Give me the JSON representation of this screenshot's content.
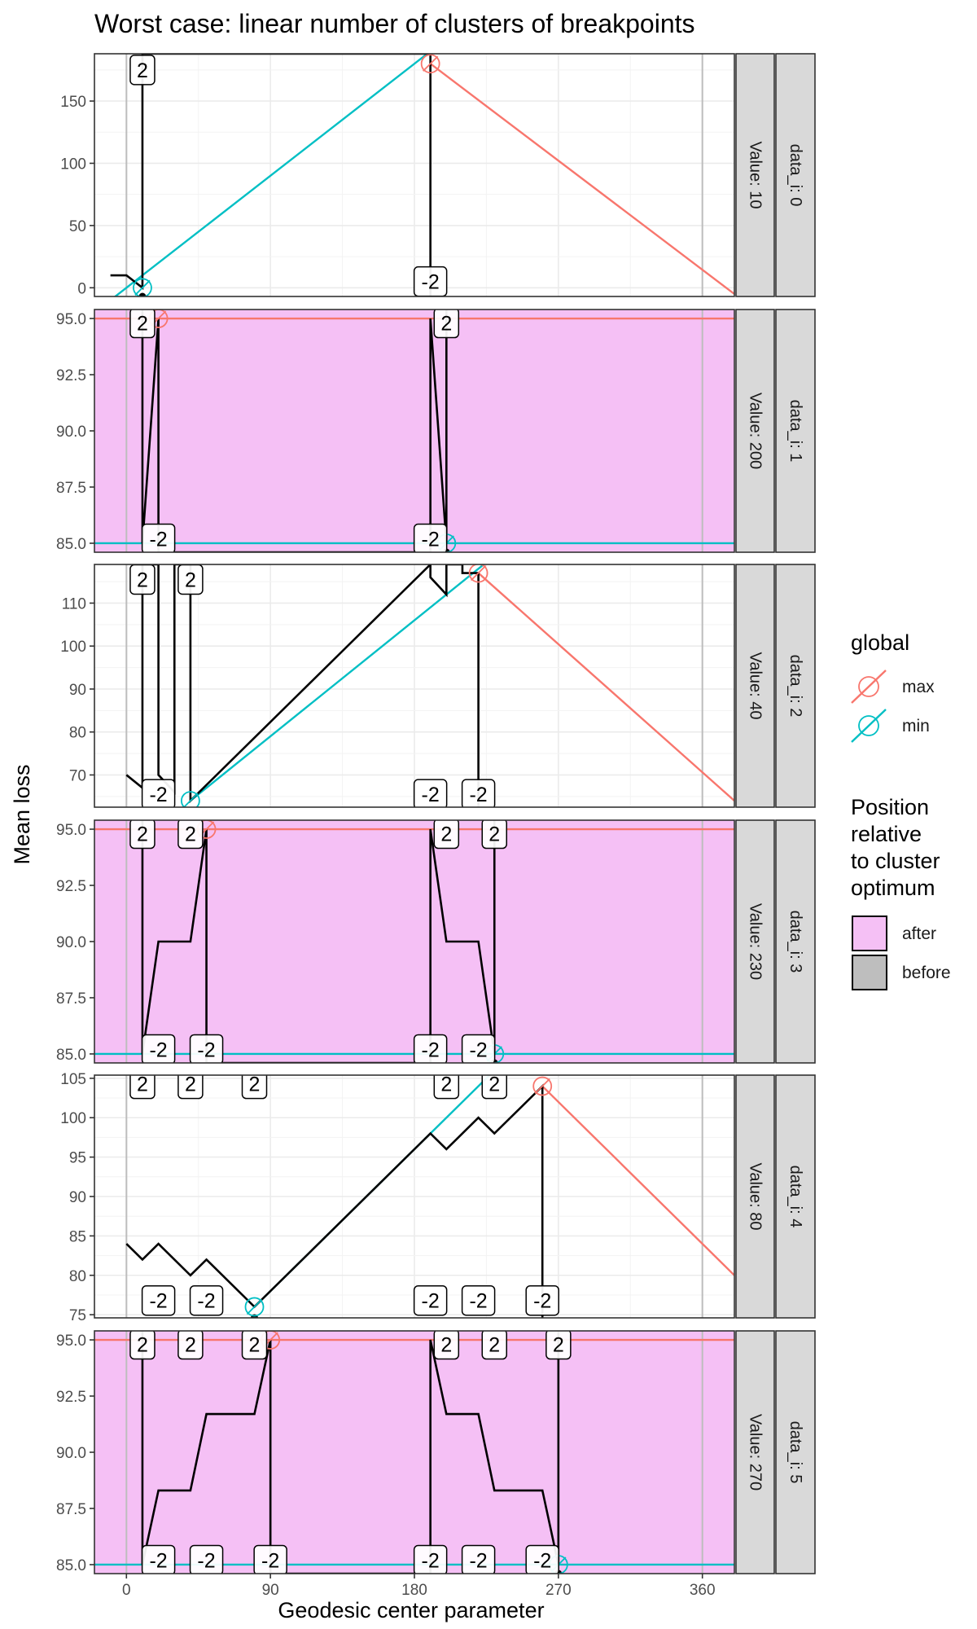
{
  "chart_data": {
    "type": "line",
    "title": "Worst case: linear number of clusters of breakpoints",
    "xlabel": "Geodesic center parameter",
    "ylabel": "Mean loss",
    "x_ticks": [
      0,
      90,
      180,
      270,
      360
    ],
    "xlim": [
      -20,
      380
    ],
    "colors": {
      "max": "#F8766D",
      "min": "#00BFC4",
      "after": "#F5C0F5",
      "before": "#BEBEBE"
    },
    "legend": {
      "global": {
        "title": "global",
        "items": [
          "max",
          "min"
        ]
      },
      "position": {
        "title_lines": [
          "Position",
          "relative",
          "to cluster",
          "optimum"
        ],
        "items": [
          "after",
          "before"
        ]
      }
    },
    "panels": [
      {
        "strip_data": "data_i: 0",
        "strip_value": "Value: 10",
        "shaded": false,
        "ylim": [
          -7,
          188
        ],
        "y_ticks": [
          0,
          50,
          100,
          150
        ],
        "y_tick_labels": [
          "0",
          "50",
          "100",
          "150"
        ],
        "vlines": [
          0,
          360
        ],
        "loss": [
          [
            -10,
            10
          ],
          [
            0,
            10
          ],
          [
            10,
            0
          ],
          [
            10,
            188
          ],
          [
            190,
            188
          ],
          [
            190,
            -7
          ]
        ],
        "max_line": [
          [
            190,
            180
          ],
          [
            380,
            -5
          ]
        ],
        "min_line": [
          [
            -20,
            -20
          ],
          [
            200,
            200
          ]
        ],
        "max_point": [
          190,
          180
        ],
        "min_point": [
          10,
          0
        ],
        "dots": [
          [
            10,
            -7
          ]
        ],
        "labels": [
          {
            "x": 10,
            "y": 175,
            "text": "2"
          },
          {
            "x": 190,
            "y": 5,
            "text": "-2"
          }
        ]
      },
      {
        "strip_data": "data_i: 1",
        "strip_value": "Value: 200",
        "shaded": true,
        "ylim": [
          84.6,
          95.4
        ],
        "y_ticks": [
          85,
          87.5,
          90,
          92.5,
          95
        ],
        "y_tick_labels": [
          "85.0",
          "87.5",
          "90.0",
          "92.5",
          "95.0"
        ],
        "vlines": [
          0,
          360
        ],
        "loss": [
          [
            10,
            95.4
          ],
          [
            10,
            85
          ],
          [
            20,
            95
          ],
          [
            20,
            84.6
          ],
          [
            190,
            84.6
          ],
          [
            190,
            95
          ],
          [
            200,
            85
          ],
          [
            200,
            95.4
          ]
        ],
        "max_line": [
          [
            -20,
            95
          ],
          [
            380,
            95
          ]
        ],
        "min_line": [
          [
            -20,
            85
          ],
          [
            380,
            85
          ]
        ],
        "max_point": [
          20,
          95
        ],
        "min_point": [
          200,
          85
        ],
        "dots": [
          [
            200,
            84.6
          ]
        ],
        "labels": [
          {
            "x": 10,
            "y": 94.8,
            "text": "2"
          },
          {
            "x": 20,
            "y": 85.2,
            "text": "-2"
          },
          {
            "x": 190,
            "y": 85.2,
            "text": "-2"
          },
          {
            "x": 200,
            "y": 94.8,
            "text": "2"
          }
        ]
      },
      {
        "strip_data": "data_i: 2",
        "strip_value": "Value: 40",
        "shaded": false,
        "ylim": [
          62.5,
          119
        ],
        "y_ticks": [
          70,
          80,
          90,
          100,
          110
        ],
        "y_tick_labels": [
          "70",
          "80",
          "90",
          "100",
          "110"
        ],
        "vlines": [
          0,
          360
        ],
        "loss": [
          [
            0,
            70
          ],
          [
            10,
            67
          ],
          [
            10,
            119
          ],
          [
            20,
            119
          ],
          [
            20,
            70
          ],
          [
            30,
            66
          ],
          [
            30,
            119
          ],
          [
            40,
            119
          ],
          [
            40,
            64
          ],
          [
            190,
            119
          ],
          [
            190,
            116
          ],
          [
            200,
            112
          ],
          [
            200,
            119
          ],
          [
            210,
            119
          ],
          [
            210,
            117
          ],
          [
            220,
            117
          ],
          [
            220,
            62.5
          ]
        ],
        "max_line": [
          [
            220,
            117
          ],
          [
            380,
            64
          ]
        ],
        "min_line": [
          [
            40,
            64
          ],
          [
            240,
            124
          ]
        ],
        "max_point": [
          220,
          117
        ],
        "min_point": [
          40,
          64
        ],
        "dots": [],
        "labels": [
          {
            "x": 10,
            "y": 115.5,
            "text": "2"
          },
          {
            "x": 40,
            "y": 115.5,
            "text": "2"
          },
          {
            "x": 20,
            "y": 65.5,
            "text": "-2"
          },
          {
            "x": 190,
            "y": 65.5,
            "text": "-2"
          },
          {
            "x": 220,
            "y": 65.5,
            "text": "-2"
          }
        ]
      },
      {
        "strip_data": "data_i: 3",
        "strip_value": "Value: 230",
        "shaded": true,
        "ylim": [
          84.6,
          95.4
        ],
        "y_ticks": [
          85,
          87.5,
          90,
          92.5,
          95
        ],
        "y_tick_labels": [
          "85.0",
          "87.5",
          "90.0",
          "92.5",
          "95.0"
        ],
        "vlines": [
          0,
          360
        ],
        "loss": [
          [
            10,
            95.4
          ],
          [
            10,
            85
          ],
          [
            20,
            90
          ],
          [
            40,
            90
          ],
          [
            50,
            95
          ],
          [
            50,
            84.6
          ],
          [
            190,
            84.6
          ],
          [
            190,
            95
          ],
          [
            200,
            90
          ],
          [
            220,
            90
          ],
          [
            230,
            85
          ],
          [
            230,
            95.4
          ]
        ],
        "max_line": [
          [
            -20,
            95
          ],
          [
            380,
            95
          ]
        ],
        "min_line": [
          [
            -20,
            85
          ],
          [
            380,
            85
          ]
        ],
        "max_point": [
          50,
          95
        ],
        "min_point": [
          230,
          85
        ],
        "dots": [
          [
            230,
            84.6
          ]
        ],
        "labels": [
          {
            "x": 10,
            "y": 94.8,
            "text": "2"
          },
          {
            "x": 40,
            "y": 94.8,
            "text": "2"
          },
          {
            "x": 200,
            "y": 94.8,
            "text": "2"
          },
          {
            "x": 230,
            "y": 94.8,
            "text": "2"
          },
          {
            "x": 20,
            "y": 85.2,
            "text": "-2"
          },
          {
            "x": 50,
            "y": 85.2,
            "text": "-2"
          },
          {
            "x": 190,
            "y": 85.2,
            "text": "-2"
          },
          {
            "x": 220,
            "y": 85.2,
            "text": "-2"
          }
        ]
      },
      {
        "strip_data": "data_i: 4",
        "strip_value": "Value: 80",
        "shaded": false,
        "ylim": [
          74.6,
          105.4
        ],
        "y_ticks": [
          75,
          80,
          85,
          90,
          95,
          100,
          105
        ],
        "y_tick_labels": [
          "75",
          "80",
          "85",
          "90",
          "95",
          "100",
          "105"
        ],
        "vlines": [
          0,
          360
        ],
        "loss": [
          [
            0,
            84
          ],
          [
            10,
            82
          ],
          [
            20,
            84
          ],
          [
            40,
            80
          ],
          [
            50,
            82
          ],
          [
            80,
            76
          ],
          [
            190,
            98
          ],
          [
            200,
            96
          ],
          [
            220,
            100
          ],
          [
            230,
            98
          ],
          [
            260,
            104
          ],
          [
            260,
            74.6
          ]
        ],
        "max_line": [
          [
            260,
            104
          ],
          [
            380,
            80
          ]
        ],
        "min_line": [
          [
            80,
            76
          ],
          [
            240,
            108
          ]
        ],
        "max_point": [
          260,
          104
        ],
        "min_point": [
          80,
          76
        ],
        "dots": [
          [
            80,
            74.6
          ]
        ],
        "labels": [
          {
            "x": 10,
            "y": 104.3,
            "text": "2"
          },
          {
            "x": 40,
            "y": 104.3,
            "text": "2"
          },
          {
            "x": 80,
            "y": 104.3,
            "text": "2"
          },
          {
            "x": 200,
            "y": 104.3,
            "text": "2"
          },
          {
            "x": 230,
            "y": 104.3,
            "text": "2"
          },
          {
            "x": 20,
            "y": 76.8,
            "text": "-2"
          },
          {
            "x": 50,
            "y": 76.8,
            "text": "-2"
          },
          {
            "x": 190,
            "y": 76.8,
            "text": "-2"
          },
          {
            "x": 220,
            "y": 76.8,
            "text": "-2"
          },
          {
            "x": 260,
            "y": 76.8,
            "text": "-2"
          }
        ]
      },
      {
        "strip_data": "data_i: 5",
        "strip_value": "Value: 270",
        "shaded": true,
        "ylim": [
          84.6,
          95.4
        ],
        "y_ticks": [
          85,
          87.5,
          90,
          92.5,
          95
        ],
        "y_tick_labels": [
          "85.0",
          "87.5",
          "90.0",
          "92.5",
          "95.0"
        ],
        "vlines": [
          0,
          360
        ],
        "loss": [
          [
            10,
            95.4
          ],
          [
            10,
            85
          ],
          [
            20,
            88.3
          ],
          [
            40,
            88.3
          ],
          [
            50,
            91.7
          ],
          [
            80,
            91.7
          ],
          [
            90,
            95
          ],
          [
            90,
            84.6
          ],
          [
            190,
            84.6
          ],
          [
            190,
            95
          ],
          [
            200,
            91.7
          ],
          [
            220,
            91.7
          ],
          [
            230,
            88.3
          ],
          [
            260,
            88.3
          ],
          [
            270,
            85
          ],
          [
            270,
            95.4
          ]
        ],
        "max_line": [
          [
            -20,
            95
          ],
          [
            380,
            95
          ]
        ],
        "min_line": [
          [
            -20,
            85
          ],
          [
            380,
            85
          ]
        ],
        "max_point": [
          90,
          95
        ],
        "min_point": [
          270,
          85
        ],
        "dots": [
          [
            270,
            84.6
          ]
        ],
        "labels": [
          {
            "x": 10,
            "y": 94.8,
            "text": "2"
          },
          {
            "x": 40,
            "y": 94.8,
            "text": "2"
          },
          {
            "x": 80,
            "y": 94.8,
            "text": "2"
          },
          {
            "x": 200,
            "y": 94.8,
            "text": "2"
          },
          {
            "x": 230,
            "y": 94.8,
            "text": "2"
          },
          {
            "x": 270,
            "y": 94.8,
            "text": "2"
          },
          {
            "x": 20,
            "y": 85.2,
            "text": "-2"
          },
          {
            "x": 50,
            "y": 85.2,
            "text": "-2"
          },
          {
            "x": 90,
            "y": 85.2,
            "text": "-2"
          },
          {
            "x": 190,
            "y": 85.2,
            "text": "-2"
          },
          {
            "x": 220,
            "y": 85.2,
            "text": "-2"
          },
          {
            "x": 260,
            "y": 85.2,
            "text": "-2"
          }
        ]
      }
    ]
  }
}
